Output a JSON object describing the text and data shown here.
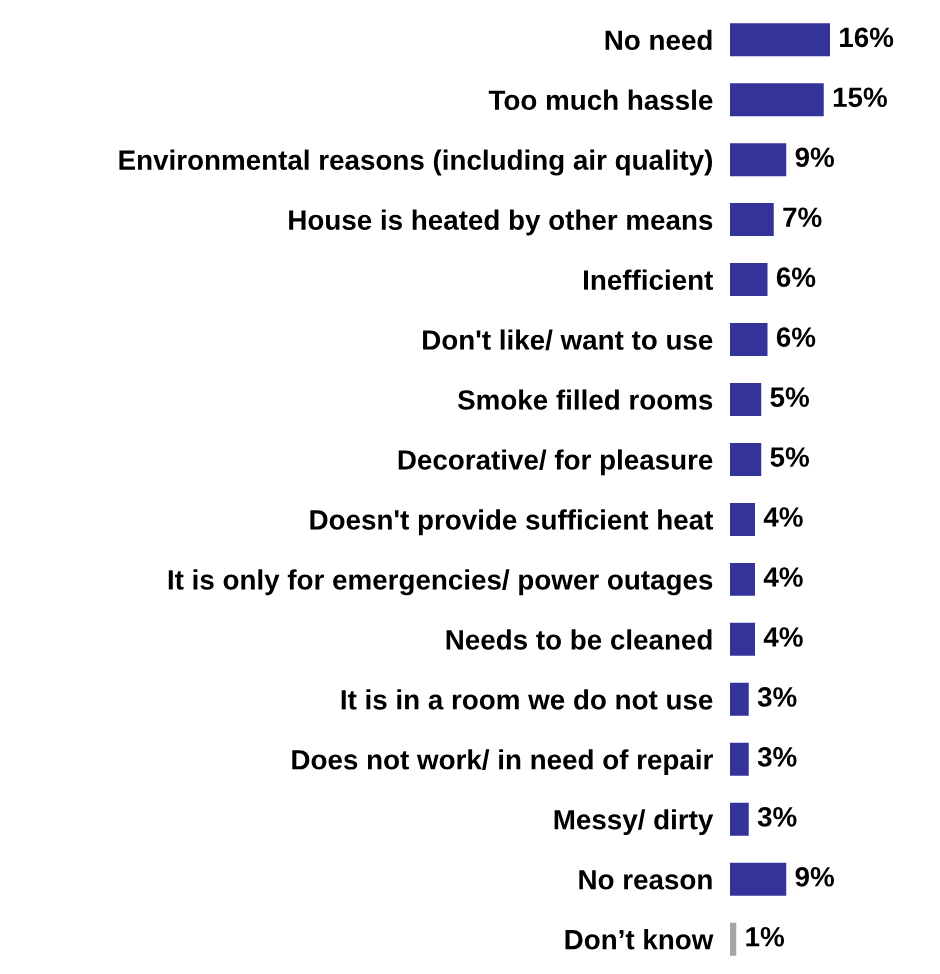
{
  "chart_data": {
    "type": "bar",
    "orientation": "horizontal",
    "categories": [
      "No need",
      "Too much hassle",
      "Environmental reasons (including air quality)",
      "House is heated by other means",
      "Inefficient",
      "Don't like/ want to use",
      "Smoke filled rooms",
      "Decorative/ for pleasure",
      "Doesn't provide sufficient heat",
      "It is only for emergencies/ power outages",
      "Needs to be cleaned",
      "It is in a room we do not use",
      "Does not work/ in need of repair",
      "Messy/ dirty",
      "No reason",
      "Don’t know"
    ],
    "values": [
      16,
      15,
      9,
      7,
      6,
      6,
      5,
      5,
      4,
      4,
      4,
      3,
      3,
      3,
      9,
      1
    ],
    "value_labels": [
      "16%",
      "15%",
      "9%",
      "7%",
      "6%",
      "6%",
      "5%",
      "5%",
      "4%",
      "4%",
      "4%",
      "3%",
      "3%",
      "3%",
      "9%",
      "1%"
    ],
    "colors": [
      "#333399",
      "#333399",
      "#333399",
      "#333399",
      "#333399",
      "#333399",
      "#333399",
      "#333399",
      "#333399",
      "#333399",
      "#333399",
      "#333399",
      "#333399",
      "#333399",
      "#333399",
      "#a6a6a6"
    ],
    "grid": false,
    "legend": false
  }
}
